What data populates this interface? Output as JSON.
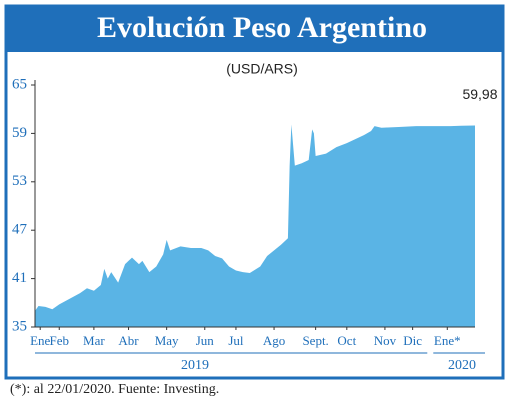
{
  "chart_data": {
    "type": "area",
    "title": "Evolución Peso Argentino",
    "subtitle": "(USD/ARS)",
    "x": [
      0,
      0.1,
      0.3,
      0.5,
      0.7,
      1.0,
      1.3,
      1.5,
      1.7,
      1.9,
      2.0,
      2.1,
      2.2,
      2.4,
      2.6,
      2.8,
      3.0,
      3.1,
      3.3,
      3.5,
      3.7,
      3.8,
      3.9,
      4.2,
      4.5,
      4.8,
      5.0,
      5.2,
      5.4,
      5.6,
      5.8,
      6.0,
      6.2,
      6.5,
      6.7,
      6.9,
      7.1,
      7.3,
      7.35,
      7.4,
      7.5,
      7.7,
      7.9,
      8.0,
      8.05,
      8.1,
      8.4,
      8.7,
      9.0,
      9.3,
      9.5,
      9.7,
      9.8,
      10.0,
      10.5,
      11.0,
      11.5,
      12.0,
      12.3,
      12.7
    ],
    "values": [
      37.0,
      37.6,
      37.5,
      37.2,
      37.8,
      38.5,
      39.2,
      39.8,
      39.5,
      40.2,
      42.2,
      41.0,
      41.8,
      40.5,
      42.8,
      43.6,
      42.8,
      43.2,
      41.8,
      42.5,
      44.0,
      45.8,
      44.5,
      45.0,
      44.8,
      44.8,
      44.5,
      43.8,
      43.5,
      42.5,
      42.0,
      41.8,
      41.7,
      42.5,
      43.8,
      44.5,
      45.2,
      46.0,
      55.0,
      60.1,
      55.0,
      55.3,
      55.7,
      59.5,
      59.0,
      56.2,
      56.5,
      57.3,
      57.8,
      58.4,
      58.8,
      59.3,
      59.9,
      59.7,
      59.8,
      59.9,
      59.9,
      59.9,
      59.95,
      59.98
    ],
    "color": "#5ab4e5",
    "xlim": [
      0,
      12.7
    ],
    "xticks": [
      {
        "value": 0.15,
        "label": "Ene"
      },
      {
        "value": 0.7,
        "label": "Feb"
      },
      {
        "value": 1.7,
        "label": "Mar"
      },
      {
        "value": 2.7,
        "label": "Abr"
      },
      {
        "value": 3.8,
        "label": "May"
      },
      {
        "value": 4.9,
        "label": "Jun"
      },
      {
        "value": 5.8,
        "label": "Jul"
      },
      {
        "value": 6.9,
        "label": "Ago"
      },
      {
        "value": 8.1,
        "label": "Sept."
      },
      {
        "value": 9.0,
        "label": "Oct"
      },
      {
        "value": 10.1,
        "label": "Nov"
      },
      {
        "value": 10.9,
        "label": "Dic"
      },
      {
        "value": 11.9,
        "label": "Ene*"
      }
    ],
    "ylim": [
      35,
      65
    ],
    "yticks": [
      35,
      41,
      47,
      53,
      59,
      65
    ],
    "annotation": {
      "label": "59,98",
      "value": 59.98
    },
    "year_labels": [
      "2019",
      "2020"
    ],
    "footnote": "(*): al 22/01/2020. Fuente: Investing."
  }
}
